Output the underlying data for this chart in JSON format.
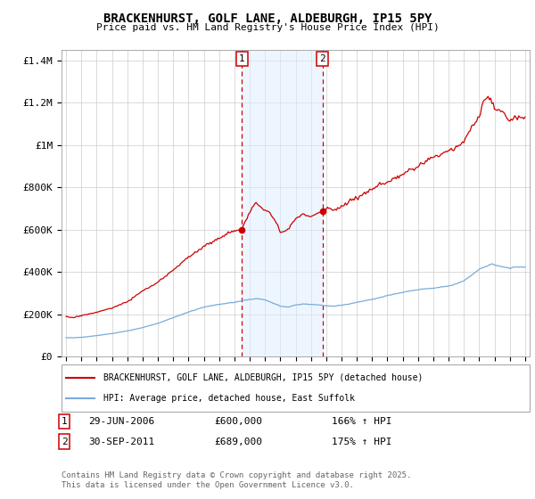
{
  "title": "BRACKENHURST, GOLF LANE, ALDEBURGH, IP15 5PY",
  "subtitle": "Price paid vs. HM Land Registry's House Price Index (HPI)",
  "background_color": "#ffffff",
  "plot_bg_color": "#ffffff",
  "grid_color": "#cccccc",
  "ylim": [
    0,
    1450000
  ],
  "yticks": [
    0,
    200000,
    400000,
    600000,
    800000,
    1000000,
    1200000,
    1400000
  ],
  "ytick_labels": [
    "£0",
    "£200K",
    "£400K",
    "£600K",
    "£800K",
    "£1M",
    "£1.2M",
    "£1.4M"
  ],
  "sale1_year": 2006.5,
  "sale1_price": 600000,
  "sale2_year": 2011.75,
  "sale2_price": 689000,
  "shade_color": "#ddeeff",
  "shade_alpha": 0.5,
  "vline_color": "#cc0000",
  "red_line_color": "#cc0000",
  "blue_line_color": "#7aabdb",
  "legend_items": [
    "BRACKENHURST, GOLF LANE, ALDEBURGH, IP15 5PY (detached house)",
    "HPI: Average price, detached house, East Suffolk"
  ],
  "footer": "Contains HM Land Registry data © Crown copyright and database right 2025.\nThis data is licensed under the Open Government Licence v3.0.",
  "xstart": 1995,
  "xend": 2025
}
